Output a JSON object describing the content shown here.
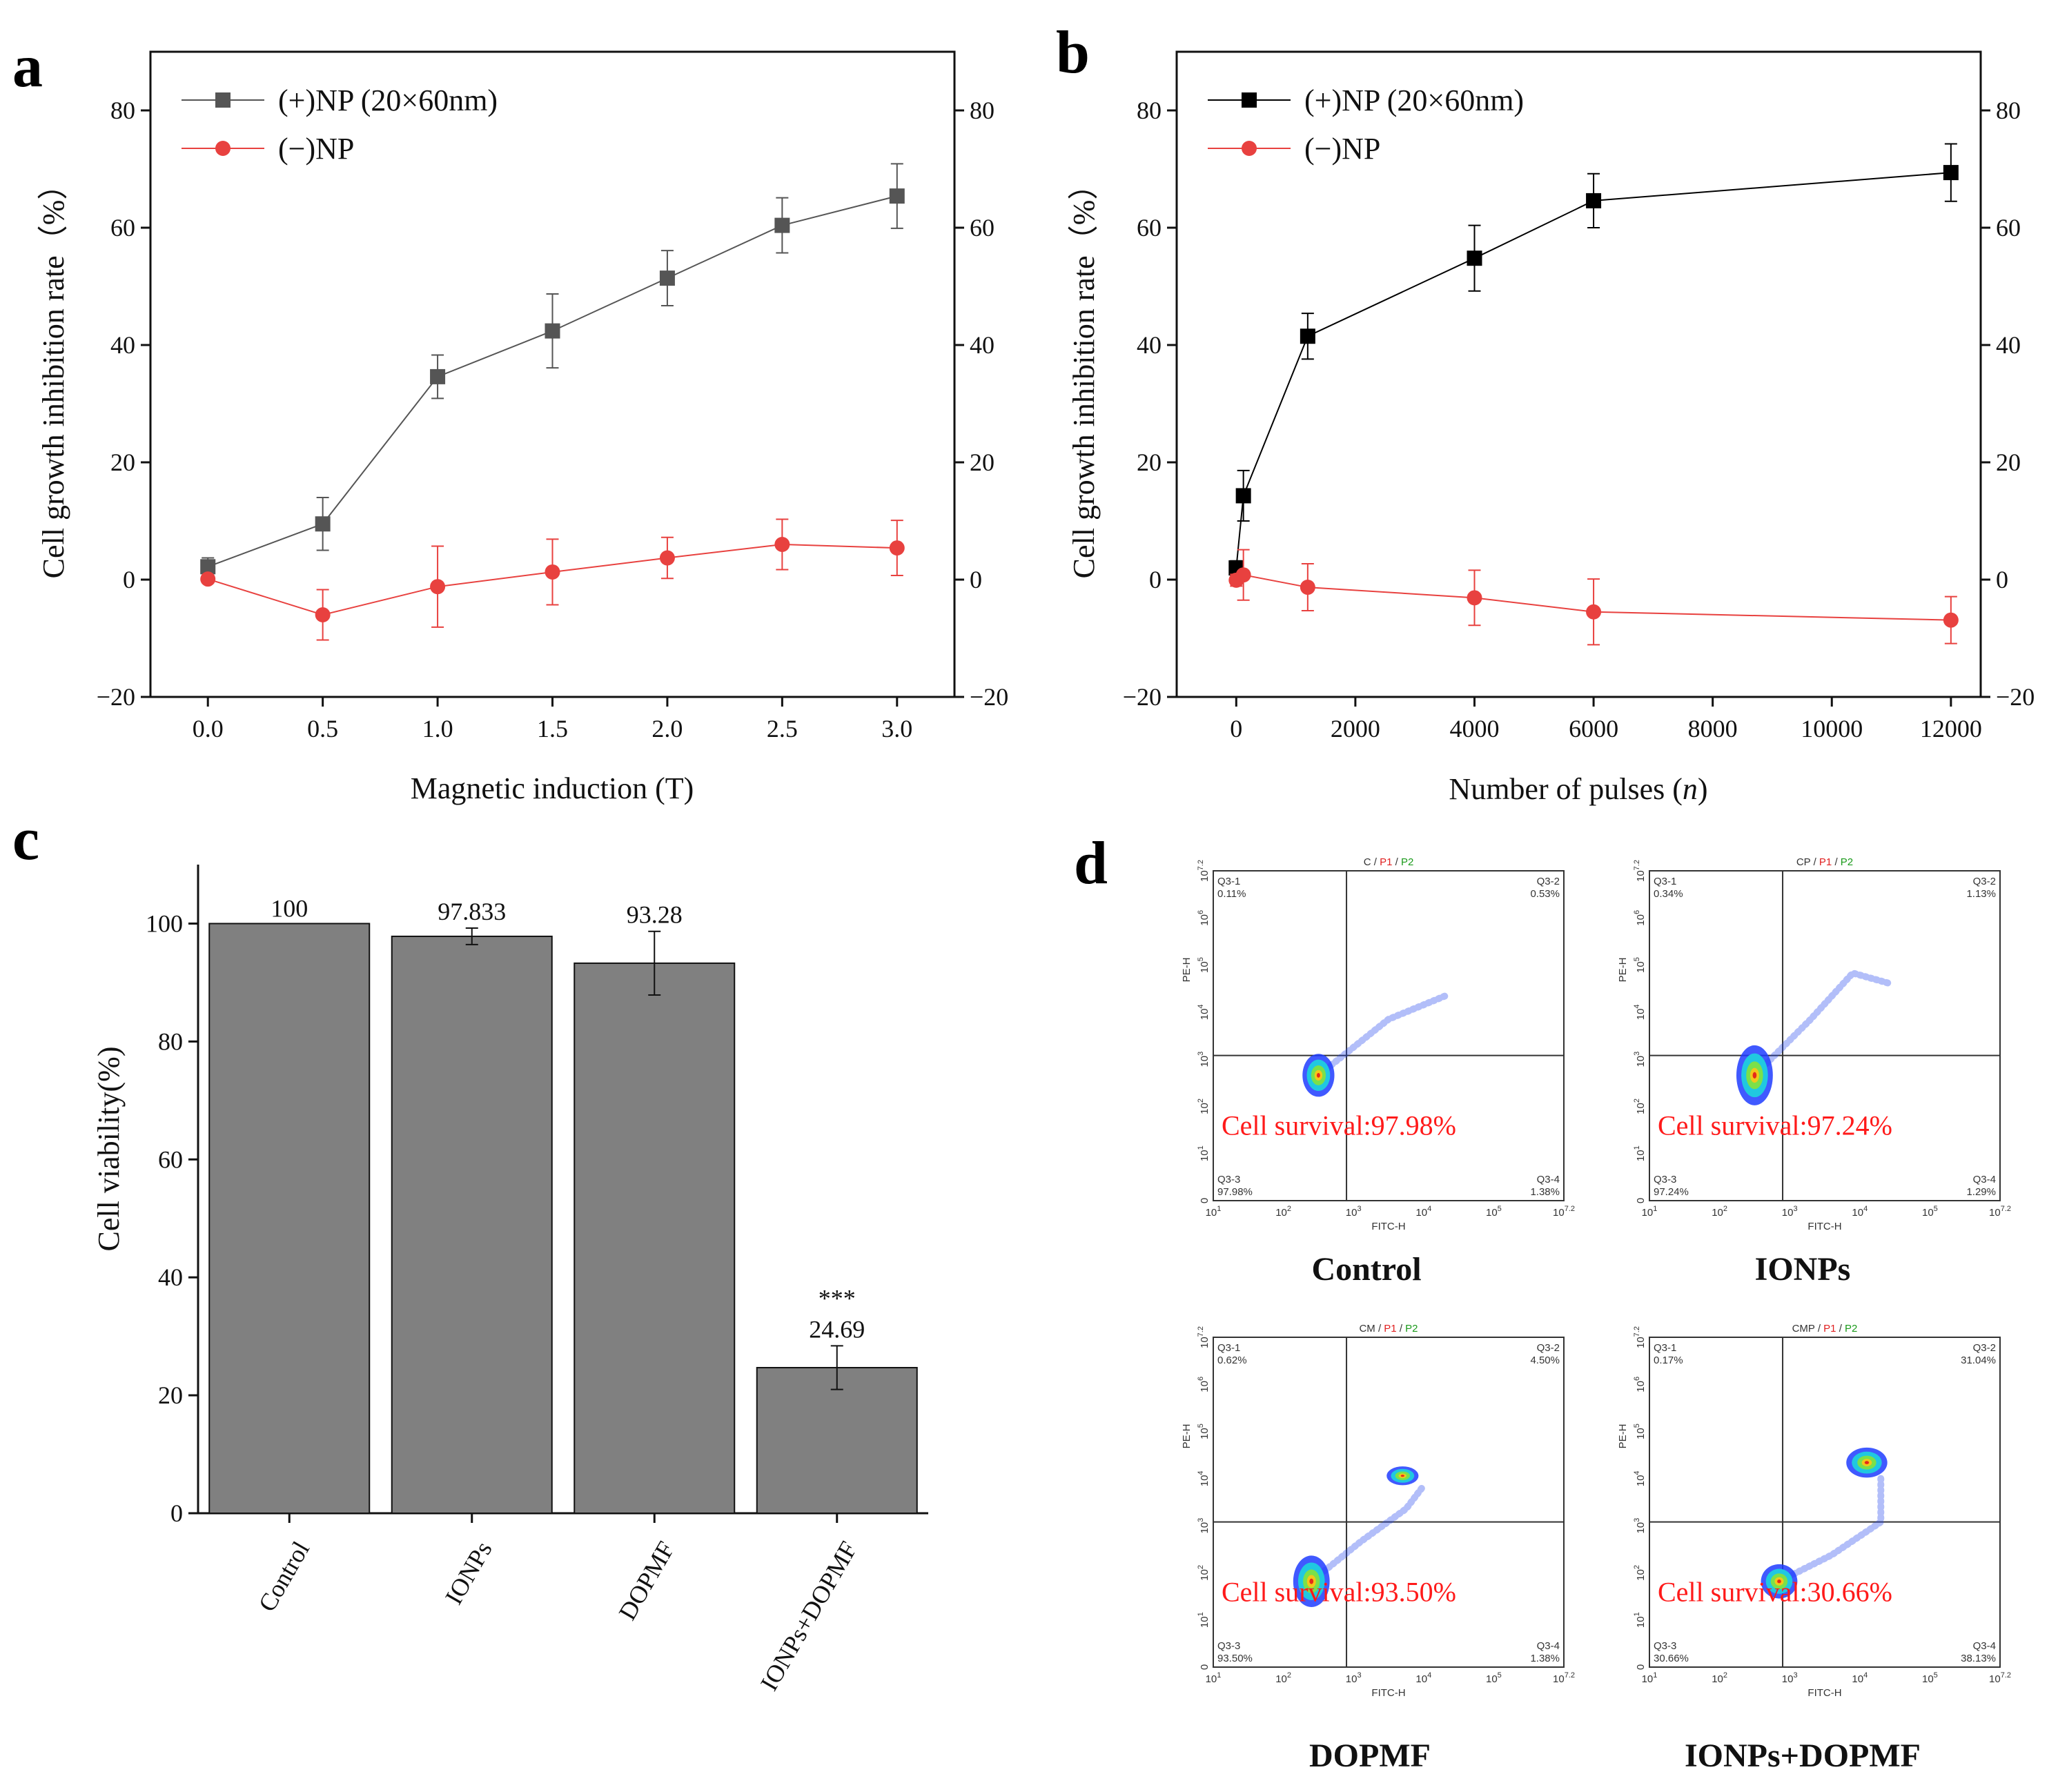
{
  "colors": {
    "series_np_pos_a": "#555555",
    "series_np_neg": "#e8413f",
    "series_np_pos_b": "#000000",
    "bar_fill": "#808080",
    "survival_text": "#ff1a1a"
  },
  "chart_data": [
    {
      "panel": "a",
      "type": "line",
      "xlabel": "Magnetic induction (T)",
      "ylabel": "Cell growth inhibition rate（%）",
      "xlim": [
        -0.25,
        3.25
      ],
      "ylim": [
        -20,
        90
      ],
      "xticks": [
        0.0,
        0.5,
        1.0,
        1.5,
        2.0,
        2.5,
        3.0
      ],
      "xtick_labels": [
        "0.0",
        "0.5",
        "1.0",
        "1.5",
        "2.0",
        "2.5",
        "3.0"
      ],
      "yticks": [
        -20,
        0,
        20,
        40,
        60,
        80
      ],
      "ytick_labels": [
        "−20",
        "0",
        "20",
        "40",
        "60",
        "80"
      ],
      "legend_position": "top-left",
      "series": [
        {
          "name": "(+)NP (20×60nm)",
          "marker": "square",
          "color": "#555555",
          "x": [
            0.0,
            0.5,
            1.0,
            1.5,
            2.0,
            2.5,
            3.0
          ],
          "y": [
            2.2,
            9.5,
            34.6,
            42.4,
            51.4,
            60.4,
            65.4
          ],
          "err": [
            1.5,
            4.5,
            3.7,
            6.3,
            4.7,
            4.7,
            5.5
          ]
        },
        {
          "name": "(−)NP",
          "marker": "circle",
          "color": "#e8413f",
          "x": [
            0.0,
            0.5,
            1.0,
            1.5,
            2.0,
            2.5,
            3.0
          ],
          "y": [
            0.1,
            -6.0,
            -1.2,
            1.3,
            3.7,
            6.0,
            5.4
          ],
          "err": [
            0.5,
            4.3,
            6.9,
            5.6,
            3.5,
            4.3,
            4.7
          ]
        }
      ]
    },
    {
      "panel": "b",
      "type": "line",
      "xlabel": "Number of pulses (",
      "xlabel_italic": "n",
      "xlabel_end": ")",
      "ylabel": "Cell growth inhibition rate（%）",
      "xlim": [
        -1000,
        12500
      ],
      "ylim": [
        -20,
        90
      ],
      "xticks": [
        0,
        2000,
        4000,
        6000,
        8000,
        10000,
        12000
      ],
      "xtick_labels": [
        "0",
        "2000",
        "4000",
        "6000",
        "8000",
        "10000",
        "12000"
      ],
      "yticks": [
        -20,
        0,
        20,
        40,
        60,
        80
      ],
      "ytick_labels": [
        "−20",
        "0",
        "20",
        "40",
        "60",
        "80"
      ],
      "legend_position": "top-left",
      "series": [
        {
          "name": "(+)NP (20×60nm)",
          "marker": "square",
          "color": "#000000",
          "x": [
            0,
            120,
            1200,
            4000,
            6000,
            12000
          ],
          "y": [
            2.0,
            14.3,
            41.5,
            54.8,
            64.6,
            69.4
          ],
          "err": [
            1.2,
            4.3,
            3.9,
            5.6,
            4.6,
            4.9
          ]
        },
        {
          "name": "(−)NP",
          "marker": "circle",
          "color": "#e8413f",
          "x": [
            0,
            120,
            1200,
            4000,
            6000,
            12000
          ],
          "y": [
            -0.1,
            0.8,
            -1.3,
            -3.1,
            -5.5,
            -6.9
          ],
          "err": [
            1.0,
            4.3,
            4.0,
            4.7,
            5.6,
            4.0
          ]
        }
      ]
    },
    {
      "panel": "c",
      "type": "bar",
      "ylabel": "Cell viability(%)",
      "ylim": [
        0,
        110
      ],
      "yticks": [
        0,
        20,
        40,
        60,
        80,
        100
      ],
      "ytick_labels": [
        "0",
        "20",
        "40",
        "60",
        "80",
        "100"
      ],
      "categories": [
        "Control",
        "IONPs",
        "DOPMF",
        "IONPs+DOPMF"
      ],
      "values": [
        100,
        97.833,
        93.28,
        24.69
      ],
      "value_labels": [
        "100",
        "97.833",
        "93.28",
        "24.69"
      ],
      "err": [
        0,
        1.4,
        5.4,
        3.7
      ],
      "significance": "***"
    }
  ],
  "panels": {
    "a": {
      "letter": "a"
    },
    "b": {
      "letter": "b"
    },
    "c": {
      "letter": "c"
    },
    "d": {
      "letter": "d"
    }
  },
  "flow_plots": [
    {
      "title_left": "C",
      "title_p1": "P1",
      "title_p2": "P2",
      "q1": "Q3-1",
      "q1_val": "0.11%",
      "q2": "Q3-2",
      "q2_val": "0.53%",
      "q3": "Q3-3",
      "q3_val": "97.98%",
      "q4": "Q3-4",
      "q4_val": "1.38%",
      "survival": "Cell survival:97.98%",
      "caption": "Control"
    },
    {
      "title_left": "CP",
      "title_p1": "P1",
      "title_p2": "P2",
      "q1": "Q3-1",
      "q1_val": "0.34%",
      "q2": "Q3-2",
      "q2_val": "1.13%",
      "q3": "Q3-3",
      "q3_val": "97.24%",
      "q4": "Q3-4",
      "q4_val": "1.29%",
      "survival": "Cell survival:97.24%",
      "caption": "IONPs"
    },
    {
      "title_left": "CM",
      "title_p1": "P1",
      "title_p2": "P2",
      "q1": "Q3-1",
      "q1_val": "0.62%",
      "q2": "Q3-2",
      "q2_val": "4.50%",
      "q3": "Q3-3",
      "q3_val": "93.50%",
      "q4": "Q3-4",
      "q4_val": "1.38%",
      "survival": "Cell survival:93.50%",
      "caption": "DOPMF"
    },
    {
      "title_left": "CMP",
      "title_p1": "P1",
      "title_p2": "P2",
      "q1": "Q3-1",
      "q1_val": "0.17%",
      "q2": "Q3-2",
      "q2_val": "31.04%",
      "q3": "Q3-3",
      "q3_val": "30.66%",
      "q4": "Q3-4",
      "q4_val": "38.13%",
      "survival": "Cell survival:30.66%",
      "caption": "IONPs+DOPMF"
    }
  ],
  "flow_axes": {
    "x_label": "FITC-H",
    "y_label": "PE-H",
    "x_ticks": [
      "10",
      "10",
      "10",
      "10",
      "10",
      "10"
    ],
    "x_exps": [
      "1",
      "2",
      "3",
      "4",
      "5",
      "7.2"
    ],
    "y_ticks": [
      "0",
      "10",
      "10",
      "10",
      "10",
      "10",
      "10",
      "10"
    ],
    "y_exps": [
      "",
      "1",
      "2",
      "3",
      "4",
      "5",
      "6",
      "7.2"
    ]
  }
}
